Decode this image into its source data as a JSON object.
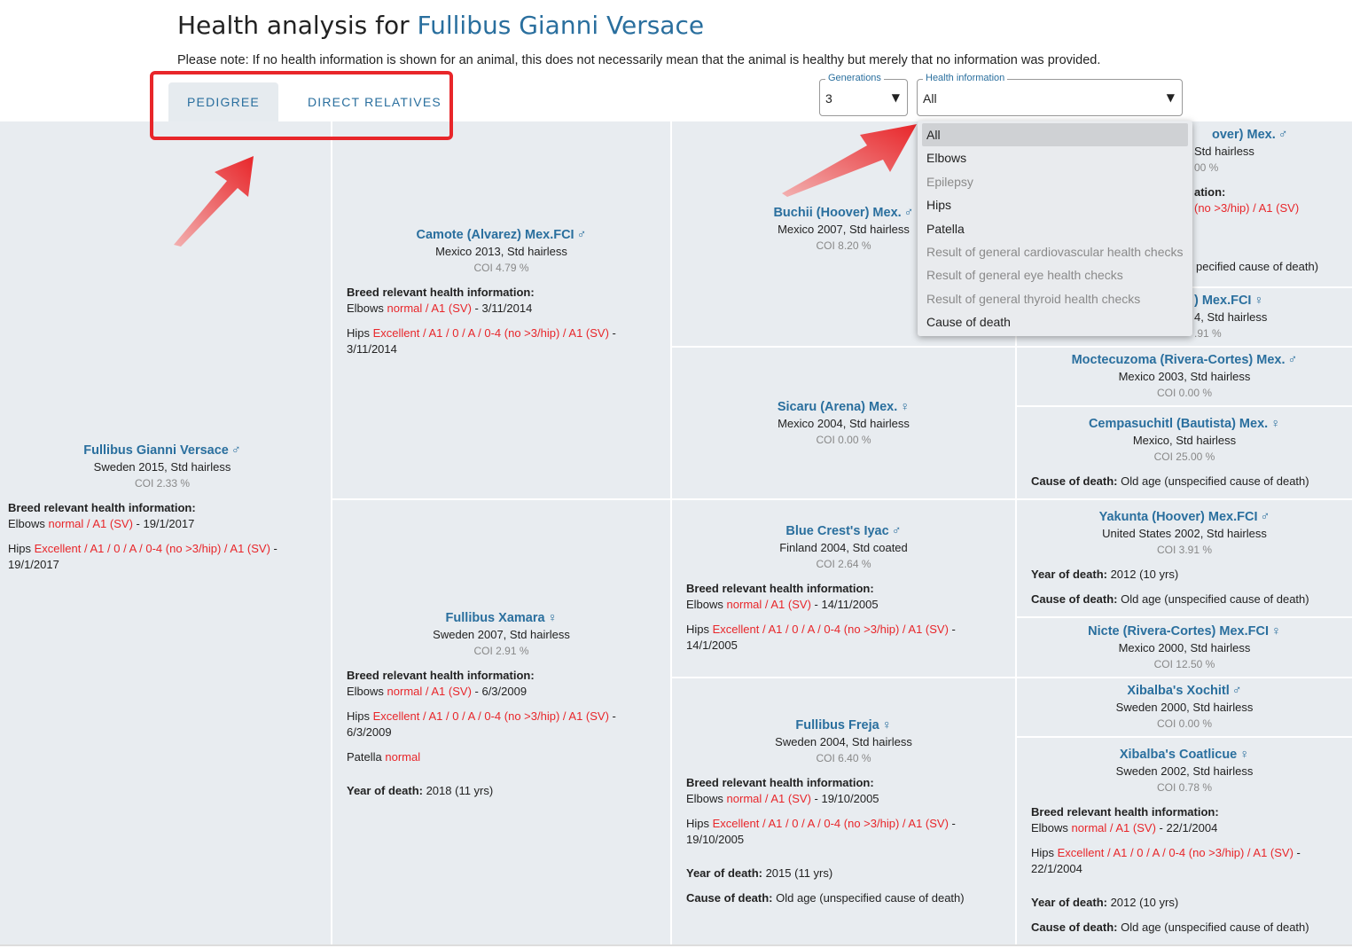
{
  "page": {
    "title_prefix": "Health analysis for",
    "title_dog": "Fullibus Gianni Versace",
    "note": "Please note: If no health information is shown for an animal, this does not necessarily mean that the animal is healthy but merely that no information was provided."
  },
  "tabs": [
    {
      "label": "PEDIGREE",
      "active": true
    },
    {
      "label": "DIRECT RELATIVES",
      "active": false
    }
  ],
  "generations": {
    "label": "Generations",
    "value": "3"
  },
  "health_info": {
    "label": "Health information",
    "value": "All",
    "options": [
      {
        "label": "All",
        "disabled": false,
        "selected": true
      },
      {
        "label": "Elbows",
        "disabled": false
      },
      {
        "label": "Epilepsy",
        "disabled": true
      },
      {
        "label": "Hips",
        "disabled": false
      },
      {
        "label": "Patella",
        "disabled": false
      },
      {
        "label": "Result of general cardiovascular health checks",
        "disabled": true
      },
      {
        "label": "Result of general eye health checks",
        "disabled": true
      },
      {
        "label": "Result of general thyroid health checks",
        "disabled": true
      },
      {
        "label": "Cause of death",
        "disabled": false
      }
    ]
  },
  "colors": {
    "link": "#2a6f9e",
    "result": "#e8262a",
    "panel": "#e8ecf0",
    "highlight": "#e8262a"
  },
  "dogs": {
    "root": {
      "name": "Fullibus Gianni Versace",
      "sex": "♂",
      "meta": "Sweden 2015,  Std hairless",
      "coi": "COI 2.33 %",
      "breed_label": "Breed relevant health information:",
      "elbows_label": "Elbows ",
      "elbows_result": "normal / A1 (SV)",
      "elbows_date": " - 19/1/2017",
      "hips_label": "Hips ",
      "hips_result": "Excellent / A1 / 0 / A / 0-4 (no >3/hip) / A1 (SV)",
      "hips_date": " - 19/1/2017"
    },
    "sire": {
      "name": "Camote (Alvarez) Mex.FCI",
      "sex": "♂",
      "meta": "Mexico 2013,  Std hairless",
      "coi": "COI 4.79 %",
      "breed_label": "Breed relevant health information:",
      "elbows_label": "Elbows ",
      "elbows_result": "normal / A1 (SV)",
      "elbows_date": " - 3/11/2014",
      "hips_label": "Hips ",
      "hips_result": "Excellent / A1 / 0 / A / 0-4 (no >3/hip) / A1 (SV)",
      "hips_date": " - 3/11/2014"
    },
    "dam": {
      "name": "Fullibus Xamara",
      "sex": "♀",
      "meta": "Sweden 2007,  Std hairless",
      "coi": "COI 2.91 %",
      "breed_label": "Breed relevant health information:",
      "elbows_label": "Elbows ",
      "elbows_result": "normal / A1 (SV)",
      "elbows_date": " - 6/3/2009",
      "hips_label": "Hips ",
      "hips_result": "Excellent / A1 / 0 / A / 0-4 (no >3/hip) / A1 (SV)",
      "hips_date": " - 6/3/2009",
      "patella_label": "Patella ",
      "patella_result": "normal",
      "yod_label": "Year of death:",
      "yod_value": " 2018 (11 yrs)"
    },
    "ss": {
      "name": "Buchii (Hoover) Mex.",
      "sex": "♂",
      "meta": "Mexico 2007,  Std hairless",
      "coi": "COI 8.20 %"
    },
    "sd": {
      "name": "Sicaru (Arena) Mex.",
      "sex": "♀",
      "meta": "Mexico 2004,  Std hairless",
      "coi": "COI 0.00 %"
    },
    "ds": {
      "name": "Blue Crest's Iyac",
      "sex": "♂",
      "meta": "Finland 2004,  Std coated",
      "coi": "COI 2.64 %",
      "breed_label": "Breed relevant health information:",
      "elbows_label": "Elbows ",
      "elbows_result": "normal / A1 (SV)",
      "elbows_date": " - 14/11/2005",
      "hips_label": "Hips ",
      "hips_result": "Excellent / A1 / 0 / A / 0-4 (no >3/hip) / A1 (SV)",
      "hips_date": " - 14/1/2005"
    },
    "dd": {
      "name": "Fullibus Freja",
      "sex": "♀",
      "meta": "Sweden 2004,  Std hairless",
      "coi": "COI 6.40 %",
      "breed_label": "Breed relevant health information:",
      "elbows_label": "Elbows ",
      "elbows_result": "normal / A1 (SV)",
      "elbows_date": " - 19/10/2005",
      "hips_label": "Hips ",
      "hips_result": "Excellent / A1 / 0 / A / 0-4 (no >3/hip) / A1 (SV)",
      "hips_date": " - 19/10/2005",
      "yod_label": "Year of death:",
      "yod_value": " 2015 (11 yrs)",
      "cod_label": "Cause of death:",
      "cod_value": " Old age (unspecified cause of death)"
    },
    "sss": {
      "name_visible": "over) Mex.",
      "sex": "♂",
      "meta_visible": "Std hairless",
      "coi_visible": "00 %",
      "health_visible_label": "ation:",
      "health_visible_result": "(no >3/hip) / A1 (SV)",
      "cod_visible": "pecified cause of death)"
    },
    "ssd": {
      "name_visible": ") Mex.FCI",
      "sex": "♀",
      "meta_visible": "4,  Std hairless",
      "coi_visible": ".91 %"
    },
    "sds": {
      "name": "Moctecuzoma (Rivera-Cortes) Mex.",
      "sex": "♂",
      "meta": "Mexico 2003,  Std hairless",
      "coi": "COI 0.00 %"
    },
    "sdd": {
      "name": "Cempasuchitl (Bautista) Mex.",
      "sex": "♀",
      "meta": "Mexico,  Std hairless",
      "coi": "COI 25.00 %",
      "cod_label": "Cause of death:",
      "cod_value": " Old age (unspecified cause of death)"
    },
    "dss": {
      "name": "Yakunta (Hoover) Mex.FCI",
      "sex": "♂",
      "meta": "United States 2002,  Std hairless",
      "coi": "COI 3.91 %",
      "yod_label": "Year of death:",
      "yod_value": " 2012 (10 yrs)",
      "cod_label": "Cause of death:",
      "cod_value": " Old age (unspecified cause of death)"
    },
    "dsd": {
      "name": "Nicte (Rivera-Cortes) Mex.FCI",
      "sex": "♀",
      "meta": "Mexico 2000,  Std hairless",
      "coi": "COI 12.50 %"
    },
    "dds": {
      "name": "Xibalba's Xochitl",
      "sex": "♂",
      "meta": "Sweden 2000,  Std hairless",
      "coi": "COI 0.00 %"
    },
    "ddd": {
      "name": "Xibalba's Coatlicue",
      "sex": "♀",
      "meta": "Sweden 2002,  Std hairless",
      "coi": "COI 0.78 %",
      "breed_label": "Breed relevant health information:",
      "elbows_label": "Elbows ",
      "elbows_result": "normal / A1 (SV)",
      "elbows_date": " - 22/1/2004",
      "hips_label": "Hips ",
      "hips_result": "Excellent / A1 / 0 / A / 0-4 (no >3/hip) / A1 (SV)",
      "hips_date": " - 22/1/2004",
      "yod_label": "Year of death:",
      "yod_value": " 2012 (10 yrs)",
      "cod_label": "Cause of death:",
      "cod_value": " Old age (unspecified cause of death)"
    }
  }
}
